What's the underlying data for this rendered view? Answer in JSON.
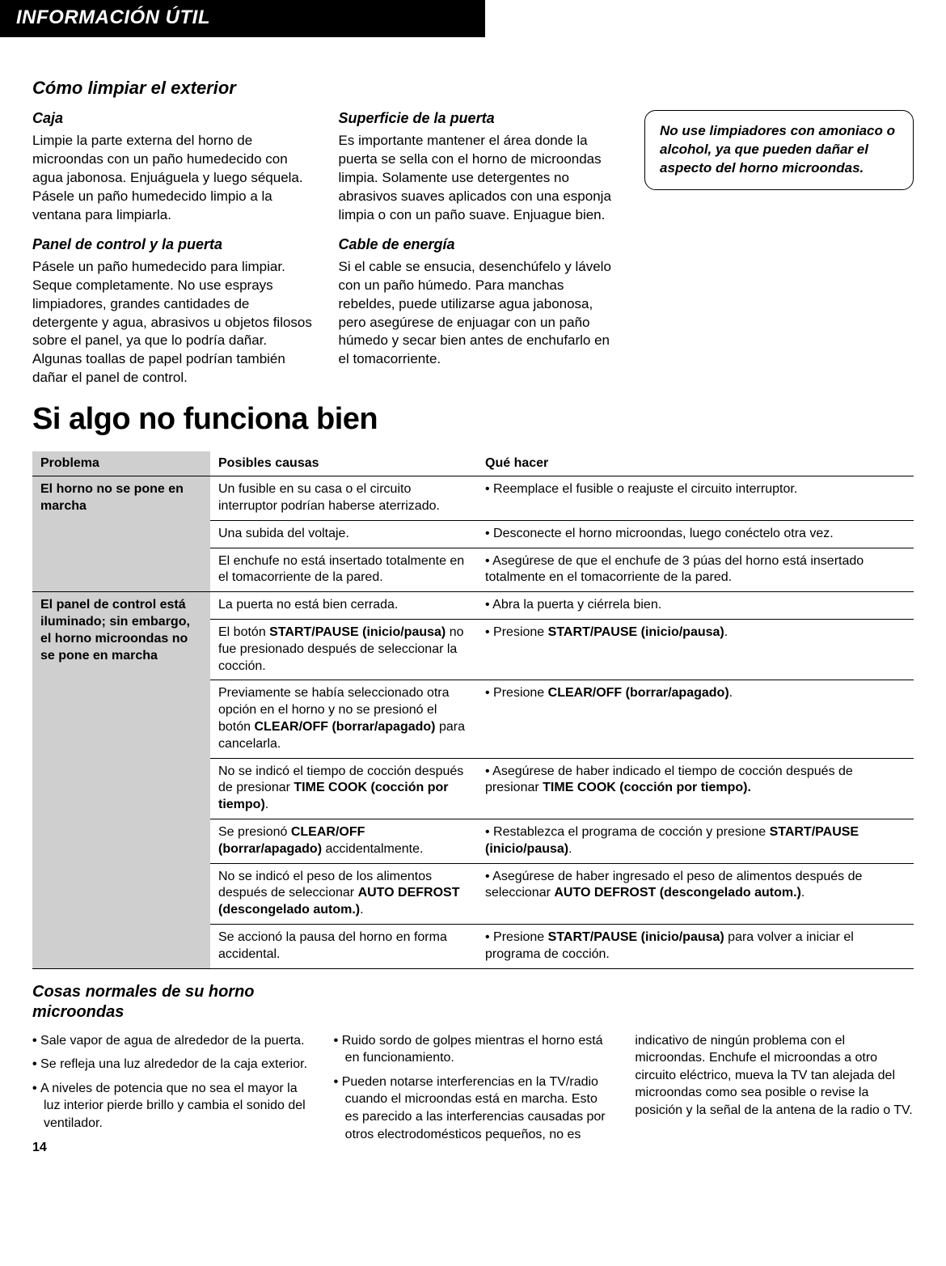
{
  "banner": "INFORMACIÓN ÚTIL",
  "cleaning": {
    "title": "Cómo limpiar el exterior",
    "col1": {
      "s1_title": "Caja",
      "s1_text": "Limpie la parte externa del horno de microondas con un paño humedecido con agua jabonosa. Enjuáguela y luego séquela. Pásele un paño humedecido limpio a la ventana para limpiarla.",
      "s2_title": "Panel de control y la puerta",
      "s2_text": "Pásele un paño humedecido para limpiar. Seque completamente. No use esprays limpiadores, grandes cantidades de detergente y agua, abrasivos u objetos filosos sobre el panel, ya que lo podría dañar. Algunas toallas de papel podrían también dañar el panel de control."
    },
    "col2": {
      "s1_title": "Superficie de la puerta",
      "s1_text": "Es importante mantener el área donde la puerta se sella con el horno de microondas limpia. Solamente use detergentes no abrasivos suaves aplicados con una esponja limpia o con un paño suave. Enjuague bien.",
      "s2_title": "Cable de energía",
      "s2_text": "Si el cable se ensucia, desenchúfelo y lávelo con un paño húmedo. Para manchas rebeldes, puede utilizarse agua jabonosa, pero asegúrese de enjuagar con un paño húmedo y secar bien antes de enchufarlo en el tomacorriente."
    },
    "callout": "No use limpiadores con amoniaco o alcohol, ya que pueden dañar el aspecto del horno microondas."
  },
  "troubleshoot": {
    "heading": "Si algo no funciona bien",
    "headers": {
      "problem": "Problema",
      "causes": "Posibles causas",
      "action": "Qué hacer"
    },
    "group1": {
      "problem": "El horno no se pone en marcha",
      "rows": [
        {
          "cause": "Un fusible en su casa o el circuito interruptor podrían haberse aterrizado.",
          "action": "Reemplace el fusible o reajuste el circuito interruptor."
        },
        {
          "cause": "Una subida del voltaje.",
          "action": "Desconecte el horno microondas, luego conéctelo otra vez."
        },
        {
          "cause": "El enchufe no está insertado totalmente en el tomacorriente de la pared.",
          "action": "Asegúrese de que el enchufe de 3 púas del horno está insertado totalmente en el tomacorriente de la pared."
        }
      ]
    },
    "group2": {
      "problem": "El panel de control está iluminado; sin embargo, el horno microondas no se pone en marcha",
      "rows": [
        {
          "cause_html": "La puerta no está bien cerrada.",
          "action_html": "Abra la puerta y ciérrela bien."
        },
        {
          "cause_html": "El botón <span class=\"b\">START/PAUSE (inicio/pausa)</span> no fue presionado después de seleccionar la cocción.",
          "action_html": "Presione <span class=\"b\">START/PAUSE (inicio/pausa)</span>."
        },
        {
          "cause_html": "Previamente se había seleccionado otra opción en el horno y no se presionó el botón <span class=\"b\">CLEAR/OFF (borrar/apagado)</span> para cancelarla.",
          "action_html": "Presione <span class=\"b\">CLEAR/OFF (borrar/apagado)</span>."
        },
        {
          "cause_html": "No se indicó el tiempo de cocción después de presionar <span class=\"b\">TIME COOK (cocción por tiempo)</span>.",
          "action_html": "Asegúrese de haber indicado el tiempo de cocción después de presionar <span class=\"b\">TIME COOK (cocción por tiempo).</span>"
        },
        {
          "cause_html": "Se presionó <span class=\"b\">CLEAR/OFF (borrar/apagado)</span> accidentalmente.",
          "action_html": "Restablezca el programa de cocción y presione <span class=\"b\">START/PAUSE (inicio/pausa)</span>."
        },
        {
          "cause_html": "No se indicó el peso de los alimentos después de seleccionar <span class=\"b\">AUTO DEFROST (descongelado autom.)</span>.",
          "action_html": "Asegúrese de haber ingresado el peso de alimentos después de seleccionar <span class=\"b\">AUTO DEFROST (descongelado autom.)</span>."
        },
        {
          "cause_html": "Se accionó la pausa del horno en forma accidental.",
          "action_html": "Presione <span class=\"b\">START/PAUSE (inicio/pausa)</span> para volver a iniciar el programa de cocción."
        }
      ]
    }
  },
  "normal": {
    "title": "Cosas normales de su horno microondas",
    "col1": [
      "Sale vapor de agua de alrededor de la puerta.",
      "Se refleja una luz alrededor de la caja exterior.",
      "A niveles de potencia que no sea el mayor la luz interior pierde brillo y cambia el sonido del ventilador."
    ],
    "col2": [
      "Ruido sordo de golpes mientras el horno está en funcionamiento.",
      "Pueden notarse interferencias en la TV/radio cuando el microondas está en marcha. Esto es parecido a las interferencias causadas por otros electrodomésticos pequeños, no es"
    ],
    "col3_text": "indicativo de ningún problema con el microondas. Enchufe el microondas a otro circuito eléctrico, mueva la TV tan alejada del microondas como sea posible o revise la posición y la señal de la antena de la radio o TV."
  },
  "page_number": "14"
}
